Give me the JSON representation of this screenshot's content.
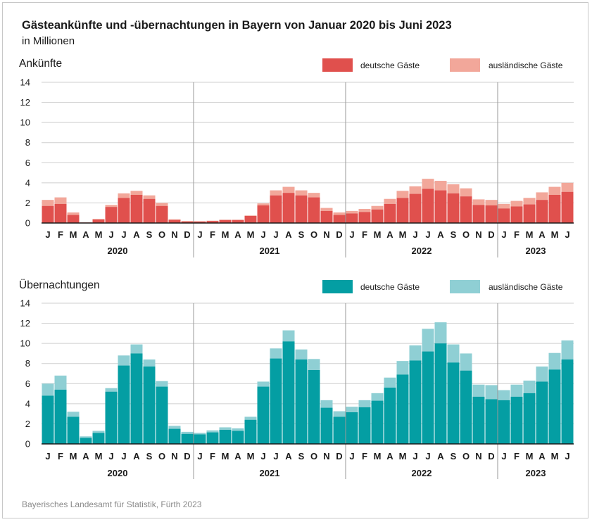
{
  "title": "Gästeankünfte und -übernachtungen in Bayern von Januar 2020 bis Juni 2023",
  "subtitle": "in Millionen",
  "source": "Bayerisches Landesamt für Statistik, Fürth 2023",
  "colors": {
    "arrivals_domestic": "#e0504d",
    "arrivals_foreign": "#f2a79a",
    "nights_domestic": "#049ea3",
    "nights_foreign": "#8fcfd4",
    "grid": "#cfcfcf",
    "axis": "#1a1a1a"
  },
  "chart_data": [
    {
      "type": "bar",
      "stacked": true,
      "title": "Ankünfte",
      "ylim": [
        0,
        14
      ],
      "yticks": [
        0,
        2,
        4,
        6,
        8,
        10,
        12,
        14
      ],
      "grid": true,
      "legend_position": "top-right",
      "month_labels": [
        "J",
        "F",
        "M",
        "A",
        "M",
        "J",
        "J",
        "A",
        "S",
        "O",
        "N",
        "D",
        "J",
        "F",
        "M",
        "A",
        "M",
        "J",
        "J",
        "A",
        "S",
        "O",
        "N",
        "D",
        "J",
        "F",
        "M",
        "A",
        "M",
        "J",
        "J",
        "A",
        "S",
        "O",
        "N",
        "D",
        "J",
        "F",
        "M",
        "A",
        "M",
        "J"
      ],
      "years": [
        {
          "label": "2020",
          "months": 12
        },
        {
          "label": "2021",
          "months": 12
        },
        {
          "label": "2022",
          "months": 12
        },
        {
          "label": "2023",
          "months": 6
        }
      ],
      "series": [
        {
          "name": "deutsche Gäste",
          "values": [
            1.7,
            1.9,
            0.8,
            0.05,
            0.35,
            1.6,
            2.5,
            2.8,
            2.4,
            1.7,
            0.3,
            0.15,
            0.15,
            0.2,
            0.3,
            0.3,
            0.7,
            1.75,
            2.75,
            3.0,
            2.75,
            2.55,
            1.2,
            0.8,
            0.95,
            1.1,
            1.35,
            1.9,
            2.5,
            2.9,
            3.4,
            3.25,
            2.95,
            2.65,
            1.8,
            1.75,
            1.45,
            1.65,
            1.85,
            2.3,
            2.8,
            3.1
          ]
        },
        {
          "name": "ausländische Gäste",
          "values": [
            0.6,
            0.65,
            0.25,
            0.02,
            0.05,
            0.2,
            0.45,
            0.4,
            0.35,
            0.3,
            0.08,
            0.05,
            0.03,
            0.03,
            0.03,
            0.03,
            0.05,
            0.2,
            0.5,
            0.6,
            0.5,
            0.45,
            0.3,
            0.25,
            0.25,
            0.3,
            0.35,
            0.5,
            0.7,
            0.75,
            1.0,
            0.95,
            0.9,
            0.8,
            0.55,
            0.55,
            0.45,
            0.55,
            0.65,
            0.75,
            0.8,
            0.9
          ]
        }
      ]
    },
    {
      "type": "bar",
      "stacked": true,
      "title": "Übernachtungen",
      "ylim": [
        0,
        14
      ],
      "yticks": [
        0,
        2,
        4,
        6,
        8,
        10,
        12,
        14
      ],
      "grid": true,
      "legend_position": "top-right",
      "month_labels": [
        "J",
        "F",
        "M",
        "A",
        "M",
        "J",
        "J",
        "A",
        "S",
        "O",
        "N",
        "D",
        "J",
        "F",
        "M",
        "A",
        "M",
        "J",
        "J",
        "A",
        "S",
        "O",
        "N",
        "D",
        "J",
        "F",
        "M",
        "A",
        "M",
        "J",
        "J",
        "A",
        "S",
        "O",
        "N",
        "D",
        "J",
        "F",
        "M",
        "A",
        "M",
        "J"
      ],
      "years": [
        {
          "label": "2020",
          "months": 12
        },
        {
          "label": "2021",
          "months": 12
        },
        {
          "label": "2022",
          "months": 12
        },
        {
          "label": "2023",
          "months": 6
        }
      ],
      "series": [
        {
          "name": "deutsche Gäste",
          "values": [
            4.8,
            5.4,
            2.7,
            0.6,
            1.1,
            5.2,
            7.8,
            9.0,
            7.7,
            5.7,
            1.5,
            1.0,
            0.95,
            1.15,
            1.4,
            1.3,
            2.4,
            5.7,
            8.5,
            10.2,
            8.4,
            7.35,
            3.6,
            2.7,
            3.15,
            3.65,
            4.3,
            5.6,
            6.9,
            8.3,
            9.2,
            10.0,
            8.1,
            7.3,
            4.7,
            4.45,
            4.35,
            4.7,
            5.05,
            6.2,
            7.4,
            8.4
          ]
        },
        {
          "name": "ausländische Gäste",
          "values": [
            1.2,
            1.4,
            0.5,
            0.15,
            0.2,
            0.35,
            1.0,
            0.9,
            0.7,
            0.55,
            0.3,
            0.2,
            0.15,
            0.2,
            0.25,
            0.25,
            0.3,
            0.5,
            1.0,
            1.1,
            1.0,
            1.1,
            0.75,
            0.55,
            0.55,
            0.7,
            0.75,
            1.0,
            1.35,
            1.5,
            2.25,
            2.1,
            1.8,
            1.7,
            1.2,
            1.4,
            1.0,
            1.2,
            1.25,
            1.5,
            1.65,
            1.9
          ]
        }
      ]
    }
  ]
}
